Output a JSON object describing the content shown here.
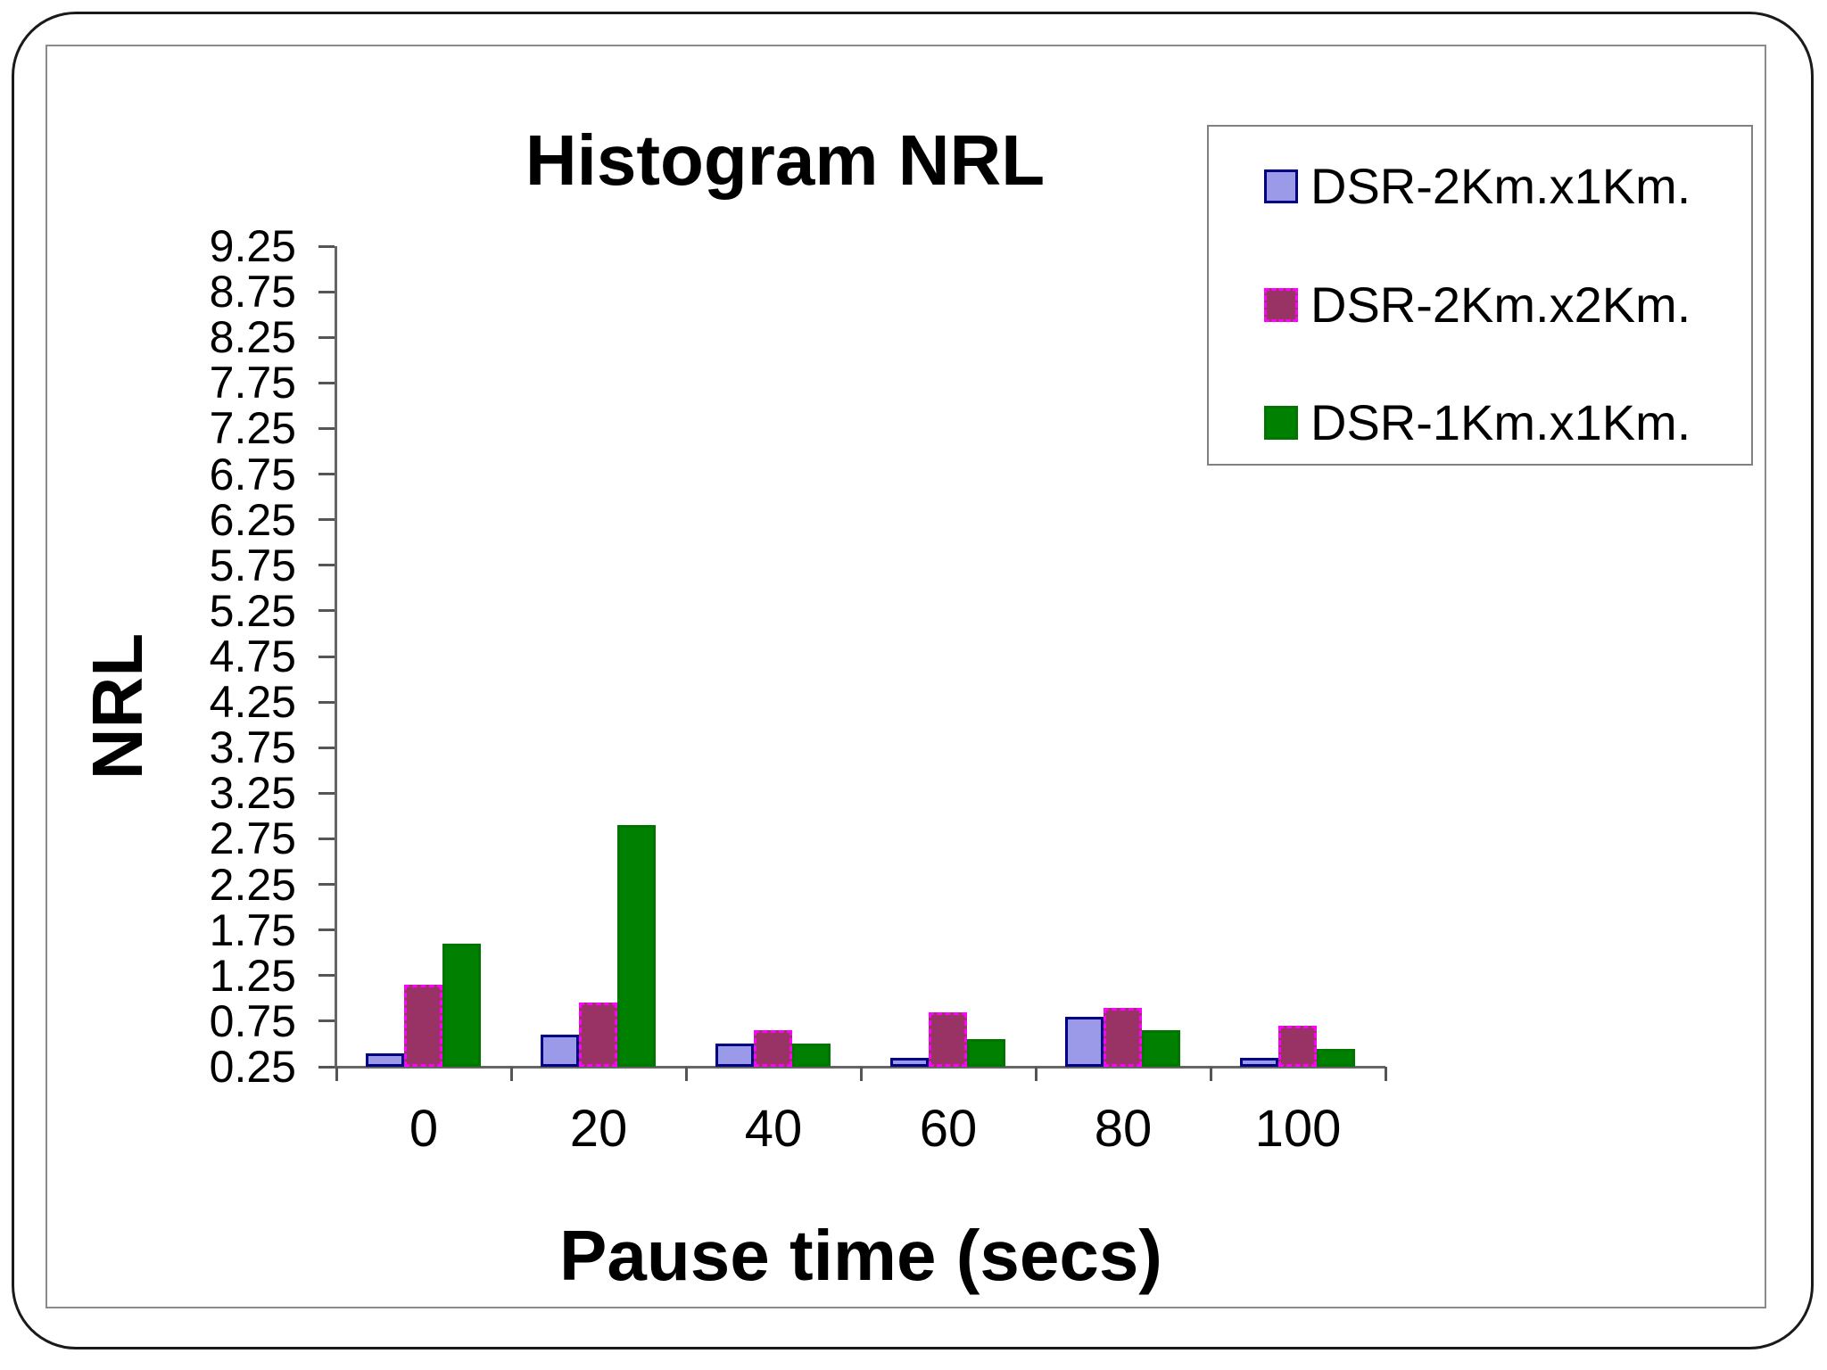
{
  "chart_data": {
    "type": "bar",
    "title": "Histogram NRL",
    "xlabel": "Pause time (secs)",
    "ylabel": "NRL",
    "categories": [
      "0",
      "20",
      "40",
      "60",
      "80",
      "100"
    ],
    "series": [
      {
        "name": "DSR-2Km.x1Km.",
        "fill": "#9A9AE8",
        "border_color": "#000080",
        "border_style": "solid",
        "values": [
          0.4,
          0.6,
          0.5,
          0.35,
          0.8,
          0.35
        ]
      },
      {
        "name": "DSR-2Km.x2Km.",
        "fill": "#993366",
        "border_color": "#FF00FF",
        "border_style": "dashed",
        "values": [
          1.15,
          0.95,
          0.65,
          0.85,
          0.9,
          0.7
        ]
      },
      {
        "name": "DSR-1Km.x1Km.",
        "fill": "#008000",
        "border_color": "#007500",
        "border_style": "solid",
        "values": [
          1.6,
          2.9,
          0.5,
          0.55,
          0.65,
          0.45
        ]
      }
    ],
    "y_ticks": [
      "9.25",
      "8.75",
      "8.25",
      "7.75",
      "7.25",
      "6.75",
      "6.25",
      "5.75",
      "5.25",
      "4.75",
      "4.25",
      "3.75",
      "3.25",
      "2.75",
      "2.25",
      "1.75",
      "1.25",
      "0.75",
      "0.25"
    ],
    "ylim": [
      0.25,
      9.25
    ],
    "baseline_value": 0.25,
    "grid": false,
    "legend_position": "top-right",
    "axis_color": "#666666"
  }
}
